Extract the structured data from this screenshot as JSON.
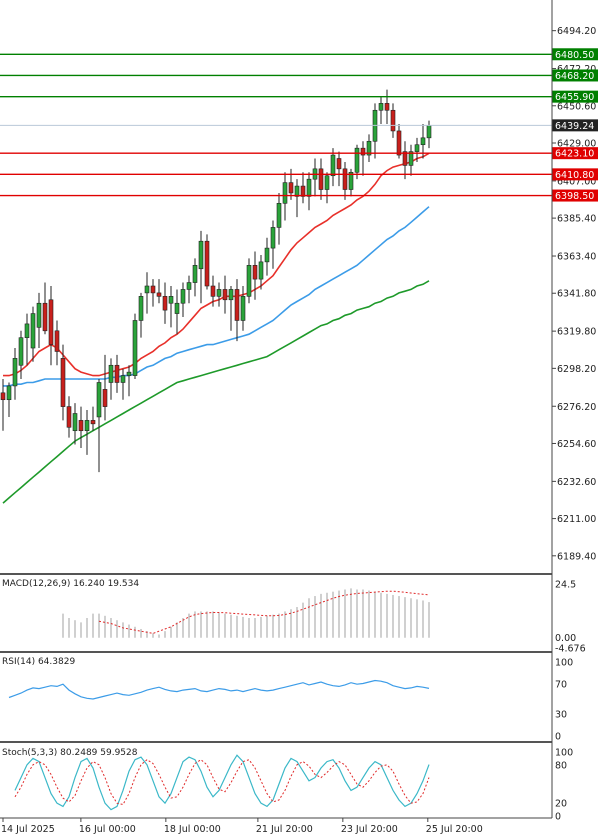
{
  "chart_data": [
    {
      "type": "candlestick",
      "name": "main",
      "ylim": [
        6180,
        6512
      ],
      "price_labels": [
        "6494.20",
        "6472.20",
        "6450.60",
        "6429.00",
        "6407.00",
        "6385.40",
        "6363.40",
        "6341.80",
        "6319.80",
        "6298.20",
        "6276.20",
        "6254.60",
        "6232.60",
        "6211.00",
        "6189.40"
      ],
      "last_price": {
        "value": 6439.24,
        "label": "6439.24"
      },
      "levels": [
        {
          "value": 6480.5,
          "label": "6480.50",
          "color": "#008000"
        },
        {
          "value": 6468.2,
          "label": "6468.20",
          "color": "#008000"
        },
        {
          "value": 6455.9,
          "label": "6455.90",
          "color": "#008000"
        },
        {
          "value": 6423.1,
          "label": "6423.10",
          "color": "#e00000"
        },
        {
          "value": 6410.8,
          "label": "6410.80",
          "color": "#e00000"
        },
        {
          "value": 6398.5,
          "label": "6398.50",
          "color": "#e00000"
        }
      ],
      "candles": [
        [
          6284,
          6292,
          6262,
          6280
        ],
        [
          6280,
          6290,
          6270,
          6288
        ],
        [
          6288,
          6310,
          6280,
          6304
        ],
        [
          6300,
          6320,
          6292,
          6316
        ],
        [
          6316,
          6330,
          6300,
          6324
        ],
        [
          6310,
          6334,
          6302,
          6330
        ],
        [
          6322,
          6342,
          6310,
          6336
        ],
        [
          6336,
          6348,
          6318,
          6320
        ],
        [
          6338,
          6346,
          6300,
          6312
        ],
        [
          6320,
          6326,
          6300,
          6308
        ],
        [
          6304,
          6312,
          6268,
          6276
        ],
        [
          6276,
          6282,
          6258,
          6264
        ],
        [
          6262,
          6278,
          6254,
          6272
        ],
        [
          6268,
          6276,
          6252,
          6262
        ],
        [
          6262,
          6274,
          6248,
          6268
        ],
        [
          6268,
          6276,
          6262,
          6266
        ],
        [
          6270,
          6292,
          6238,
          6290
        ],
        [
          6286,
          6306,
          6268,
          6276
        ],
        [
          6290,
          6304,
          6280,
          6300
        ],
        [
          6300,
          6306,
          6284,
          6290
        ],
        [
          6290,
          6298,
          6280,
          6294
        ],
        [
          6294,
          6300,
          6282,
          6296
        ],
        [
          6294,
          6330,
          6292,
          6326
        ],
        [
          6326,
          6342,
          6316,
          6340
        ],
        [
          6342,
          6354,
          6330,
          6346
        ],
        [
          6346,
          6350,
          6334,
          6342
        ],
        [
          6342,
          6350,
          6336,
          6340
        ],
        [
          6340,
          6348,
          6324,
          6332
        ],
        [
          6336,
          6346,
          6322,
          6340
        ],
        [
          6330,
          6344,
          6318,
          6336
        ],
        [
          6336,
          6348,
          6328,
          6344
        ],
        [
          6344,
          6352,
          6336,
          6348
        ],
        [
          6348,
          6362,
          6340,
          6358
        ],
        [
          6356,
          6378,
          6336,
          6372
        ],
        [
          6372,
          6376,
          6344,
          6346
        ],
        [
          6346,
          6352,
          6334,
          6340
        ],
        [
          6340,
          6348,
          6334,
          6344
        ],
        [
          6344,
          6352,
          6330,
          6338
        ],
        [
          6338,
          6346,
          6320,
          6344
        ],
        [
          6344,
          6350,
          6314,
          6326
        ],
        [
          6326,
          6346,
          6320,
          6340
        ],
        [
          6340,
          6362,
          6336,
          6358
        ],
        [
          6358,
          6366,
          6338,
          6350
        ],
        [
          6350,
          6364,
          6344,
          6360
        ],
        [
          6360,
          6374,
          6352,
          6368
        ],
        [
          6368,
          6384,
          6356,
          6380
        ],
        [
          6380,
          6400,
          6370,
          6394
        ],
        [
          6394,
          6412,
          6384,
          6406
        ],
        [
          6406,
          6414,
          6396,
          6400
        ],
        [
          6398,
          6408,
          6386,
          6404
        ],
        [
          6404,
          6412,
          6394,
          6398
        ],
        [
          6398,
          6412,
          6390,
          6408
        ],
        [
          6408,
          6420,
          6398,
          6414
        ],
        [
          6414,
          6420,
          6396,
          6402
        ],
        [
          6402,
          6412,
          6394,
          6410
        ],
        [
          6410,
          6426,
          6404,
          6422
        ],
        [
          6420,
          6424,
          6404,
          6414
        ],
        [
          6414,
          6418,
          6396,
          6402
        ],
        [
          6402,
          6414,
          6398,
          6412
        ],
        [
          6412,
          6428,
          6408,
          6426
        ],
        [
          6426,
          6430,
          6410,
          6422
        ],
        [
          6422,
          6434,
          6418,
          6430
        ],
        [
          6430,
          6452,
          6420,
          6448
        ],
        [
          6448,
          6456,
          6440,
          6452
        ],
        [
          6452,
          6460,
          6440,
          6448
        ],
        [
          6448,
          6452,
          6432,
          6436
        ],
        [
          6436,
          6440,
          6420,
          6422
        ],
        [
          6424,
          6430,
          6408,
          6416
        ],
        [
          6416,
          6428,
          6410,
          6424
        ],
        [
          6424,
          6432,
          6418,
          6428
        ],
        [
          6428,
          6440,
          6420,
          6432
        ],
        [
          6432,
          6442,
          6426,
          6439.24
        ]
      ],
      "ma_red": [
        6294,
        6294,
        6295,
        6297,
        6300,
        6304,
        6308,
        6310,
        6312,
        6310,
        6306,
        6302,
        6298,
        6296,
        6295,
        6294,
        6294,
        6295,
        6296,
        6297,
        6298,
        6299,
        6301,
        6304,
        6306,
        6308,
        6311,
        6313,
        6316,
        6318,
        6321,
        6325,
        6329,
        6333,
        6335,
        6337,
        6338,
        6340,
        6340,
        6340,
        6341,
        6342,
        6344,
        6346,
        6349,
        6352,
        6357,
        6362,
        6367,
        6371,
        6374,
        6377,
        6380,
        6382,
        6384,
        6387,
        6389,
        6391,
        6393,
        6396,
        6398,
        6401,
        6405,
        6410,
        6413,
        6415,
        6416,
        6417,
        6418,
        6420,
        6421,
        6423
      ],
      "ma_blue": [
        6288,
        6288,
        6289,
        6289,
        6290,
        6290,
        6291,
        6292,
        6292,
        6292,
        6292,
        6292,
        6292,
        6292,
        6292,
        6292,
        6292,
        6292,
        6293,
        6293,
        6294,
        6294,
        6295,
        6297,
        6299,
        6300,
        6302,
        6304,
        6305,
        6307,
        6308,
        6309,
        6310,
        6311,
        6312,
        6312,
        6313,
        6314,
        6315,
        6316,
        6317,
        6318,
        6320,
        6322,
        6324,
        6326,
        6329,
        6332,
        6335,
        6337,
        6339,
        6341,
        6344,
        6346,
        6348,
        6350,
        6352,
        6354,
        6356,
        6358,
        6361,
        6364,
        6367,
        6370,
        6373,
        6375,
        6378,
        6380,
        6383,
        6386,
        6389,
        6392
      ],
      "ma_green": [
        6220,
        6223,
        6226,
        6229,
        6232,
        6235,
        6238,
        6241,
        6244,
        6247,
        6250,
        6253,
        6256,
        6258,
        6260,
        6262,
        6264,
        6266,
        6268,
        6270,
        6272,
        6274,
        6276,
        6278,
        6280,
        6282,
        6284,
        6286,
        6288,
        6290,
        6291,
        6292,
        6293,
        6294,
        6295,
        6296,
        6297,
        6298,
        6299,
        6300,
        6301,
        6302,
        6303,
        6304,
        6305,
        6307,
        6309,
        6311,
        6313,
        6315,
        6317,
        6319,
        6321,
        6323,
        6324,
        6326,
        6327,
        6329,
        6330,
        6332,
        6333,
        6334,
        6336,
        6337,
        6339,
        6340,
        6342,
        6343,
        6344,
        6346,
        6347,
        6349
      ],
      "x_labels": [
        "14 Jul 2025",
        "16 Jul 00:00",
        "18 Jul 00:00",
        "21 Jul 20:00",
        "23 Jul 20:00",
        "25 Jul 20:00"
      ]
    },
    {
      "type": "bar",
      "name": "macd",
      "title": "MACD(12,26,9) 16.240 19.534",
      "ylim": [
        -4.676,
        24.5
      ],
      "axis_labels": [
        "24.5",
        "0.00",
        "-4.676"
      ],
      "hist": [
        11,
        9,
        8,
        7,
        9,
        11,
        11,
        10,
        9,
        8,
        7,
        6,
        5,
        4,
        3,
        2,
        1.5,
        3,
        5,
        7,
        9,
        11,
        12,
        12,
        12,
        12,
        11.5,
        11,
        10.5,
        10,
        9.5,
        9,
        9,
        9.5,
        10,
        10.5,
        11,
        12,
        13,
        14,
        16,
        18,
        19,
        20,
        20.5,
        21,
        21.5,
        22,
        22.5,
        22,
        22,
        21.5,
        21,
        20.5,
        20,
        19.5,
        19,
        18.5,
        18,
        17.5,
        17,
        16.24
      ],
      "signal": [
        7.5,
        7,
        6.5,
        5.5,
        4.5,
        4,
        3.5,
        3,
        2.5,
        2,
        3,
        4,
        5,
        6.5,
        8,
        9.5,
        10.5,
        11,
        11.3,
        11.5,
        11.5,
        11.4,
        11.2,
        11,
        10.8,
        10.6,
        10.4,
        10.2,
        10,
        10,
        10.2,
        10.6,
        11.2,
        12,
        13,
        14,
        15,
        16,
        17,
        18,
        18.8,
        19.4,
        19.8,
        20.2,
        20.4,
        20.6,
        20.8,
        21,
        21.2,
        21.2,
        21,
        20.7,
        20.4,
        20.1,
        19.8,
        19.534
      ]
    },
    {
      "type": "line",
      "name": "rsi",
      "title": "RSI(14) 64.3829",
      "ylim": [
        0,
        100
      ],
      "axis_labels": [
        "100",
        "70",
        "30",
        "0"
      ],
      "values": [
        52,
        55,
        58,
        62,
        65,
        64,
        66,
        68,
        67,
        70,
        62,
        57,
        53,
        51,
        50,
        52,
        54,
        56,
        58,
        56,
        55,
        57,
        59,
        62,
        64,
        66,
        63,
        61,
        60,
        62,
        63,
        64,
        61,
        60,
        62,
        64,
        63,
        61,
        62,
        60,
        62,
        64,
        62,
        61,
        62,
        64,
        66,
        68,
        70,
        72,
        69,
        71,
        73,
        70,
        68,
        67,
        69,
        72,
        70,
        71,
        73,
        75,
        74,
        72,
        68,
        66,
        64,
        65,
        67,
        66,
        64.3829
      ]
    },
    {
      "type": "line",
      "name": "stoch",
      "title": "Stoch(5,3,3) 80.2489 59.9528",
      "ylim": [
        0,
        100
      ],
      "axis_labels": [
        "100",
        "80",
        "20",
        "0"
      ],
      "k": [
        40,
        60,
        80,
        90,
        85,
        60,
        35,
        20,
        15,
        30,
        60,
        85,
        90,
        75,
        45,
        20,
        10,
        15,
        40,
        70,
        88,
        92,
        80,
        55,
        30,
        20,
        35,
        60,
        85,
        92,
        88,
        70,
        45,
        30,
        40,
        60,
        80,
        95,
        85,
        60,
        35,
        20,
        15,
        25,
        50,
        75,
        90,
        85,
        70,
        55,
        60,
        75,
        85,
        88,
        75,
        55,
        40,
        45,
        60,
        75,
        85,
        80,
        60,
        40,
        25,
        15,
        20,
        35,
        55,
        80.2489
      ],
      "d": [
        30,
        45,
        65,
        80,
        85,
        80,
        65,
        45,
        28,
        22,
        32,
        55,
        75,
        85,
        80,
        60,
        35,
        20,
        18,
        35,
        60,
        80,
        88,
        82,
        65,
        45,
        28,
        30,
        45,
        65,
        82,
        88,
        80,
        60,
        42,
        38,
        52,
        70,
        85,
        88,
        75,
        55,
        35,
        22,
        25,
        40,
        62,
        80,
        85,
        78,
        65,
        60,
        68,
        78,
        85,
        80,
        65,
        50,
        45,
        55,
        68,
        78,
        80,
        70,
        50,
        32,
        20,
        22,
        35,
        59.9528
      ]
    }
  ]
}
